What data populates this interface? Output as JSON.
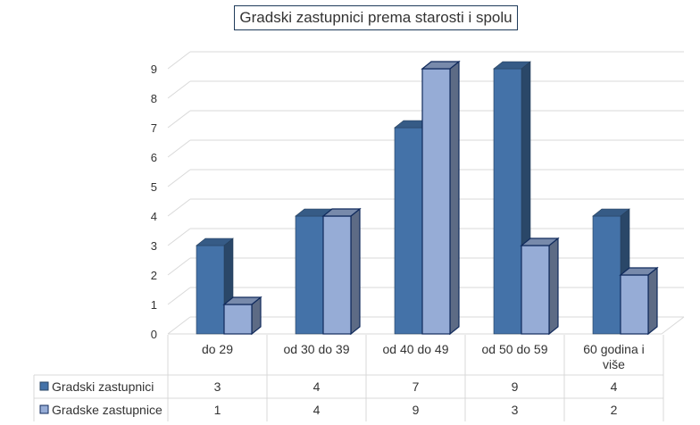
{
  "chart_data": {
    "type": "bar",
    "title": "Gradski zastupnici prema starosti i spolu",
    "categories": [
      "do 29",
      "od 30 do 39",
      "od 40 do 49",
      "od 50 do 59",
      "60 godina i više"
    ],
    "series": [
      {
        "name": "Gradski zastupnici",
        "values": [
          3,
          4,
          7,
          9,
          4
        ],
        "color": "#4472a8"
      },
      {
        "name": "Gradske zastupnice",
        "values": [
          1,
          4,
          9,
          3,
          2
        ],
        "color": "#96acd6"
      }
    ],
    "xlabel": "",
    "ylabel": "",
    "ylim": [
      0,
      9
    ],
    "yticks": [
      0,
      1,
      2,
      3,
      4,
      5,
      6,
      7,
      8,
      9
    ],
    "grid": true,
    "legend": "data-table-left",
    "data_table": true,
    "style": "3d-column"
  }
}
